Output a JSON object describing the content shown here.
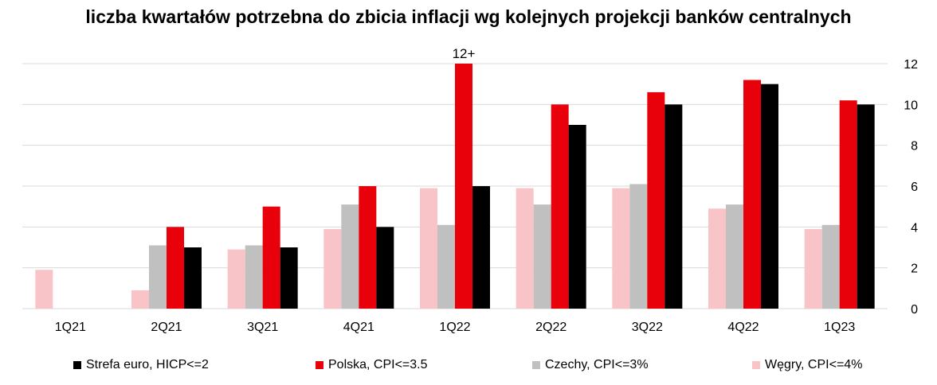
{
  "chart_data": {
    "type": "bar",
    "title": "liczba kwartałów potrzebna do zbicia inflacji wg kolejnych projekcji banków centralnych",
    "categories": [
      "1Q21",
      "2Q21",
      "3Q21",
      "4Q21",
      "1Q22",
      "2Q22",
      "3Q22",
      "4Q22",
      "1Q23"
    ],
    "ylim": [
      0,
      12
    ],
    "yticks": [
      "0",
      "2",
      "4",
      "6",
      "8",
      "10",
      "12"
    ],
    "grid": true,
    "legend_position": "bottom",
    "series": [
      {
        "name": "Węgry, CPI<=4%",
        "color": "#f9c4c7",
        "values": [
          1.9,
          0.9,
          2.9,
          3.9,
          5.9,
          5.9,
          5.9,
          4.9,
          3.9
        ]
      },
      {
        "name": "Czechy, CPI<=3%",
        "color": "#c0c0c0",
        "values": [
          0,
          3.1,
          3.1,
          5.1,
          4.1,
          5.1,
          6.1,
          5.1,
          4.1
        ]
      },
      {
        "name": "Polska, CPI<=3.5",
        "color": "#e8000b",
        "values": [
          0,
          4,
          5,
          6,
          12,
          10,
          10.6,
          11.2,
          10.2
        ]
      },
      {
        "name": "Strefa euro, HICP<=2",
        "color": "#000000",
        "values": [
          0,
          3,
          3,
          4,
          6,
          9,
          10,
          11,
          10
        ]
      }
    ],
    "annotations": [
      {
        "text": "12+",
        "category": "1Q22",
        "series": "Polska, CPI<=3.5"
      }
    ],
    "legend_order": [
      "Strefa euro, HICP<=2",
      "Polska, CPI<=3.5",
      "Czechy, CPI<=3%",
      "Węgry, CPI<=4%"
    ]
  }
}
